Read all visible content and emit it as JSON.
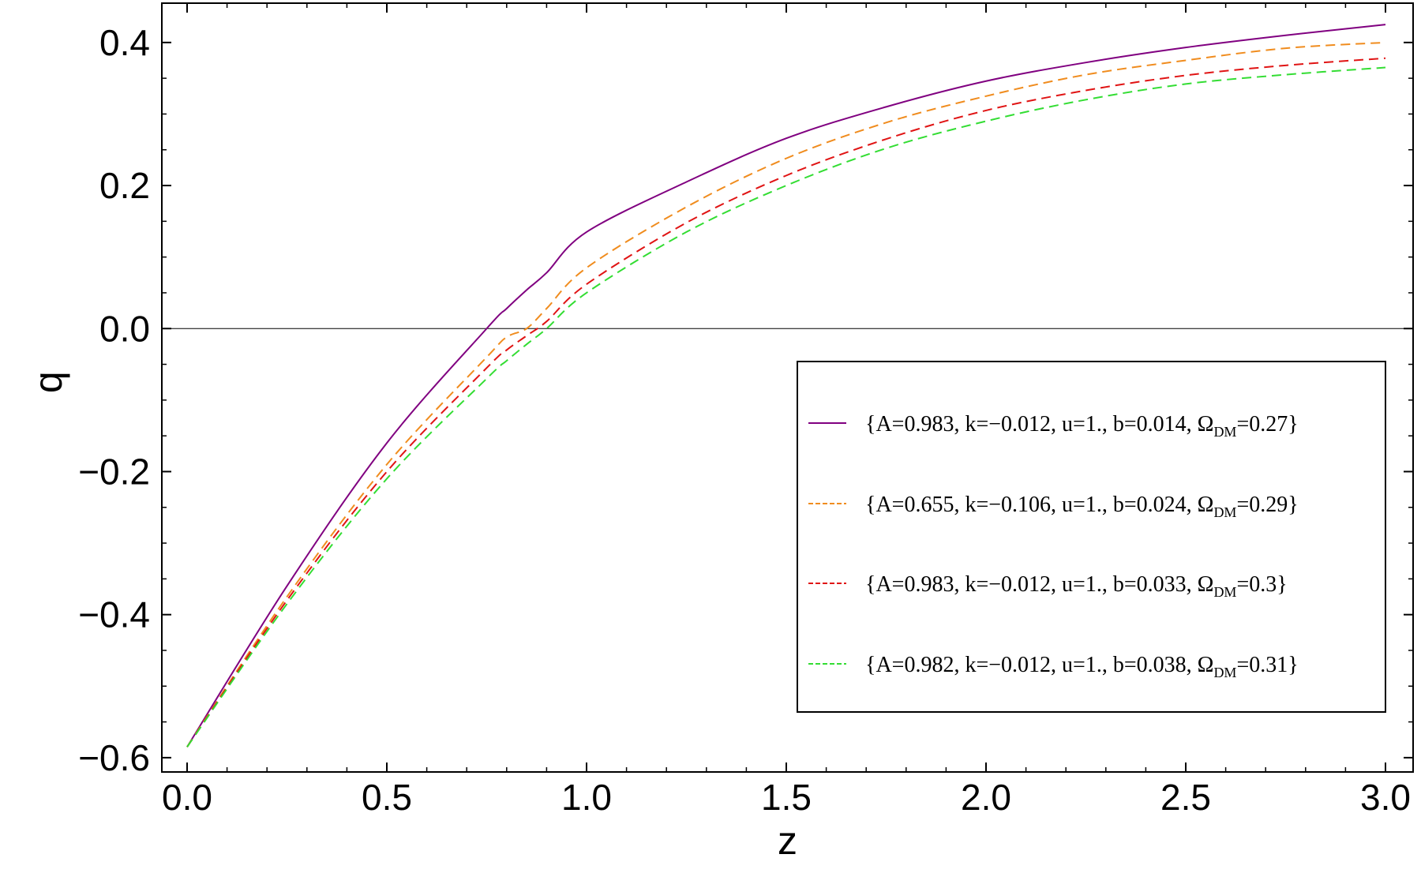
{
  "chart_data": {
    "type": "line",
    "xlabel": "z",
    "ylabel": "q",
    "xlim": [
      0.0,
      3.0
    ],
    "ylim": [
      -0.62,
      0.455
    ],
    "xticks": [
      0.0,
      0.5,
      1.0,
      1.5,
      2.0,
      2.5,
      3.0
    ],
    "xtick_labels": [
      "0.0",
      "0.5",
      "1.0",
      "1.5",
      "2.0",
      "2.5",
      "3.0"
    ],
    "yticks": [
      -0.6,
      -0.4,
      -0.2,
      0.0,
      0.2,
      0.4
    ],
    "ytick_labels": [
      "−0.6",
      "−0.4",
      "−0.2",
      "0.0",
      "0.2",
      "0.4"
    ],
    "reference_line_y": 0.0,
    "legend_position": "lower-right",
    "x": [
      0.0,
      0.25,
      0.5,
      0.75,
      0.8,
      0.85,
      0.9,
      1.0,
      1.25,
      1.5,
      1.75,
      2.0,
      2.25,
      2.5,
      2.75,
      3.0
    ],
    "series": [
      {
        "legend_main": "{A=0.983, k=−0.012, u=1., b=0.014, Ω",
        "legend_sub": "DM",
        "legend_tail": "=0.27}",
        "color": "#800080",
        "dash": "solid",
        "values": [
          -0.585,
          -0.36,
          -0.16,
          0.0,
          0.028,
          0.054,
          0.078,
          0.135,
          0.205,
          0.266,
          0.31,
          0.346,
          0.372,
          0.393,
          0.41,
          0.425
        ]
      },
      {
        "legend_main": "{A=0.655, k=−0.106, u=1., b=0.024, Ω",
        "legend_sub": "DM",
        "legend_tail": "=0.29}",
        "color": "#f08c1e",
        "dash": "dashed",
        "values": [
          -0.585,
          -0.375,
          -0.19,
          -0.04,
          -0.012,
          0.0,
          0.028,
          0.085,
          0.17,
          0.238,
          0.288,
          0.325,
          0.355,
          0.375,
          0.392,
          0.4
        ]
      },
      {
        "legend_main": "{A=0.983, k=−0.012, u=1., b=0.033, Ω",
        "legend_sub": "DM",
        "legend_tail": "=0.3}",
        "color": "#e01414",
        "dash": "dashed",
        "values": [
          -0.585,
          -0.38,
          -0.2,
          -0.055,
          -0.03,
          -0.01,
          0.01,
          0.062,
          0.148,
          0.214,
          0.265,
          0.305,
          0.333,
          0.354,
          0.368,
          0.378
        ]
      },
      {
        "legend_main": "{A=0.982, k=−0.012, u=1., b=0.038, Ω",
        "legend_sub": "DM",
        "legend_tail": "=0.31}",
        "color": "#33dd33",
        "dash": "dashed",
        "values": [
          -0.585,
          -0.385,
          -0.21,
          -0.07,
          -0.045,
          -0.022,
          0.0,
          0.05,
          0.135,
          0.2,
          0.252,
          0.29,
          0.32,
          0.342,
          0.355,
          0.365
        ]
      }
    ]
  }
}
